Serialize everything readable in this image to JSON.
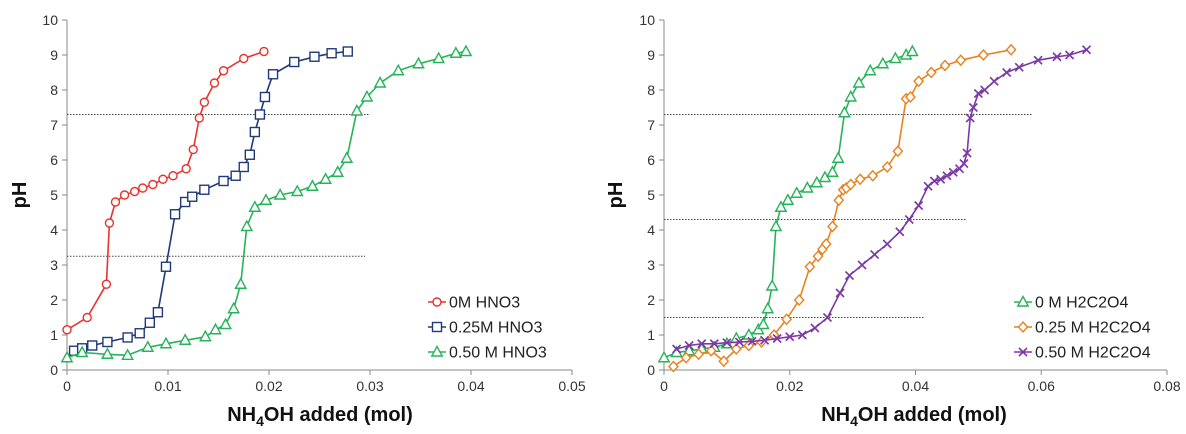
{
  "chart_data": [
    {
      "type": "line",
      "xlabel_main": "NH",
      "xlabel_sub": "4",
      "xlabel_rest": "OH added (mol)",
      "ylabel": "pH",
      "xlim": [
        0,
        0.05
      ],
      "ylim": [
        0,
        10
      ],
      "x_ticks": [
        "0",
        "0.01",
        "0.02",
        "0.03",
        "0.04",
        "0.05"
      ],
      "y_ticks": [
        "0",
        "1",
        "2",
        "3",
        "4",
        "5",
        "6",
        "7",
        "8",
        "9",
        "10"
      ],
      "legend_position": "bottom-right",
      "reference_lines": [
        {
          "y": 7.3,
          "x_start": 0,
          "x_end": 0.03
        },
        {
          "y": 3.25,
          "x_start": 0,
          "x_end": 0.0295
        }
      ],
      "series": [
        {
          "name": "0M HNO3",
          "color": "#e8322d",
          "marker": "circle",
          "x": [
            0.0,
            0.002,
            0.0039,
            0.0042,
            0.0048,
            0.0057,
            0.0067,
            0.0075,
            0.0085,
            0.0095,
            0.0105,
            0.0118,
            0.0125,
            0.0131,
            0.0136,
            0.0146,
            0.0155,
            0.0175,
            0.0195
          ],
          "y": [
            1.15,
            1.5,
            2.45,
            4.2,
            4.8,
            5.0,
            5.1,
            5.2,
            5.3,
            5.45,
            5.55,
            5.75,
            6.3,
            7.2,
            7.65,
            8.2,
            8.55,
            8.9,
            9.1
          ]
        },
        {
          "name": "0.25M HNO3",
          "color": "#1f3a7a",
          "marker": "square",
          "x": [
            0.0007,
            0.0015,
            0.0025,
            0.004,
            0.006,
            0.0072,
            0.0082,
            0.009,
            0.0098,
            0.0107,
            0.0117,
            0.0124,
            0.0136,
            0.0155,
            0.0167,
            0.0175,
            0.0181,
            0.0186,
            0.0191,
            0.0196,
            0.0204,
            0.0225,
            0.0245,
            0.0262,
            0.0278
          ],
          "y": [
            0.55,
            0.62,
            0.7,
            0.8,
            0.93,
            1.05,
            1.35,
            1.65,
            2.95,
            4.45,
            4.8,
            4.95,
            5.15,
            5.4,
            5.55,
            5.8,
            6.15,
            6.8,
            7.3,
            7.8,
            8.45,
            8.8,
            8.95,
            9.05,
            9.1
          ]
        },
        {
          "name": "0.50 M HNO3",
          "color": "#27b35a",
          "marker": "triangle",
          "x": [
            0.0,
            0.0015,
            0.004,
            0.006,
            0.008,
            0.0098,
            0.0117,
            0.0137,
            0.0147,
            0.0157,
            0.0165,
            0.0172,
            0.0178,
            0.0186,
            0.0197,
            0.0211,
            0.0228,
            0.0243,
            0.0256,
            0.0268,
            0.0277,
            0.0287,
            0.0297,
            0.031,
            0.0328,
            0.0348,
            0.0368,
            0.0385,
            0.0395
          ],
          "y": [
            0.35,
            0.5,
            0.45,
            0.42,
            0.65,
            0.75,
            0.85,
            0.95,
            1.15,
            1.3,
            1.75,
            2.45,
            4.1,
            4.65,
            4.85,
            5.0,
            5.1,
            5.25,
            5.45,
            5.65,
            6.05,
            7.4,
            7.8,
            8.2,
            8.55,
            8.75,
            8.9,
            9.05,
            9.1
          ]
        }
      ]
    },
    {
      "type": "line",
      "xlabel_main": "NH",
      "xlabel_sub": "4",
      "xlabel_rest": "OH added (mol)",
      "ylabel": "pH",
      "xlim": [
        0,
        0.08
      ],
      "ylim": [
        0,
        10
      ],
      "x_ticks": [
        "0",
        "0.02",
        "0.04",
        "0.06",
        "0.08"
      ],
      "y_ticks": [
        "0",
        "1",
        "2",
        "3",
        "4",
        "5",
        "6",
        "7",
        "8",
        "9",
        "10"
      ],
      "legend_position": "bottom-right",
      "reference_lines": [
        {
          "y": 7.3,
          "x_start": 0,
          "x_end": 0.0585
        },
        {
          "y": 4.3,
          "x_start": 0,
          "x_end": 0.048
        },
        {
          "y": 1.5,
          "x_start": 0,
          "x_end": 0.0415
        }
      ],
      "series": [
        {
          "name": "0 M H2C2O4",
          "color": "#27b35a",
          "marker": "triangle",
          "x": [
            0.0,
            0.002,
            0.004,
            0.006,
            0.008,
            0.01,
            0.0115,
            0.0135,
            0.015,
            0.0158,
            0.0165,
            0.0172,
            0.0178,
            0.0186,
            0.0197,
            0.0211,
            0.0228,
            0.0243,
            0.0256,
            0.0268,
            0.0277,
            0.0287,
            0.0297,
            0.031,
            0.0328,
            0.0348,
            0.0368,
            0.0385,
            0.0395
          ],
          "y": [
            0.35,
            0.5,
            0.55,
            0.6,
            0.65,
            0.75,
            0.9,
            1.0,
            1.15,
            1.3,
            1.75,
            2.4,
            4.1,
            4.65,
            4.85,
            5.05,
            5.2,
            5.35,
            5.5,
            5.65,
            6.05,
            7.35,
            7.8,
            8.2,
            8.55,
            8.75,
            8.9,
            9.0,
            9.1
          ]
        },
        {
          "name": "0.25 M H2C2O4",
          "color": "#e8821e",
          "marker": "diamond",
          "x": [
            0.0015,
            0.0035,
            0.0055,
            0.0075,
            0.0095,
            0.0115,
            0.0135,
            0.0155,
            0.0175,
            0.0195,
            0.0215,
            0.0232,
            0.0245,
            0.0252,
            0.0258,
            0.0268,
            0.0278,
            0.0285,
            0.029,
            0.0297,
            0.0312,
            0.0332,
            0.0355,
            0.0372,
            0.0385,
            0.0392,
            0.0405,
            0.0425,
            0.0447,
            0.0472,
            0.0508,
            0.0552
          ],
          "y": [
            0.1,
            0.35,
            0.45,
            0.55,
            0.25,
            0.6,
            0.7,
            0.8,
            1.0,
            1.45,
            2.0,
            2.95,
            3.25,
            3.45,
            3.6,
            4.1,
            4.85,
            5.15,
            5.2,
            5.3,
            5.45,
            5.55,
            5.8,
            6.25,
            7.75,
            7.8,
            8.25,
            8.5,
            8.7,
            8.85,
            9.0,
            9.15
          ]
        },
        {
          "name": "0.50 M H2C2O4",
          "color": "#7b3aa6",
          "marker": "cross",
          "x": [
            0.002,
            0.004,
            0.006,
            0.008,
            0.01,
            0.012,
            0.014,
            0.016,
            0.018,
            0.02,
            0.022,
            0.024,
            0.026,
            0.028,
            0.0295,
            0.0315,
            0.0335,
            0.0355,
            0.0375,
            0.039,
            0.0405,
            0.042,
            0.043,
            0.044,
            0.045,
            0.046,
            0.047,
            0.0477,
            0.0482,
            0.0487,
            0.0492,
            0.05,
            0.051,
            0.0525,
            0.0545,
            0.0565,
            0.0595,
            0.0625,
            0.0645,
            0.0672
          ],
          "y": [
            0.6,
            0.7,
            0.75,
            0.75,
            0.78,
            0.8,
            0.82,
            0.85,
            0.9,
            0.95,
            1.0,
            1.2,
            1.5,
            2.2,
            2.7,
            3.0,
            3.3,
            3.6,
            3.95,
            4.3,
            4.7,
            5.25,
            5.4,
            5.45,
            5.55,
            5.65,
            5.75,
            5.9,
            6.2,
            7.2,
            7.5,
            7.9,
            8.0,
            8.25,
            8.5,
            8.65,
            8.85,
            8.95,
            9.0,
            9.15
          ]
        }
      ]
    }
  ]
}
